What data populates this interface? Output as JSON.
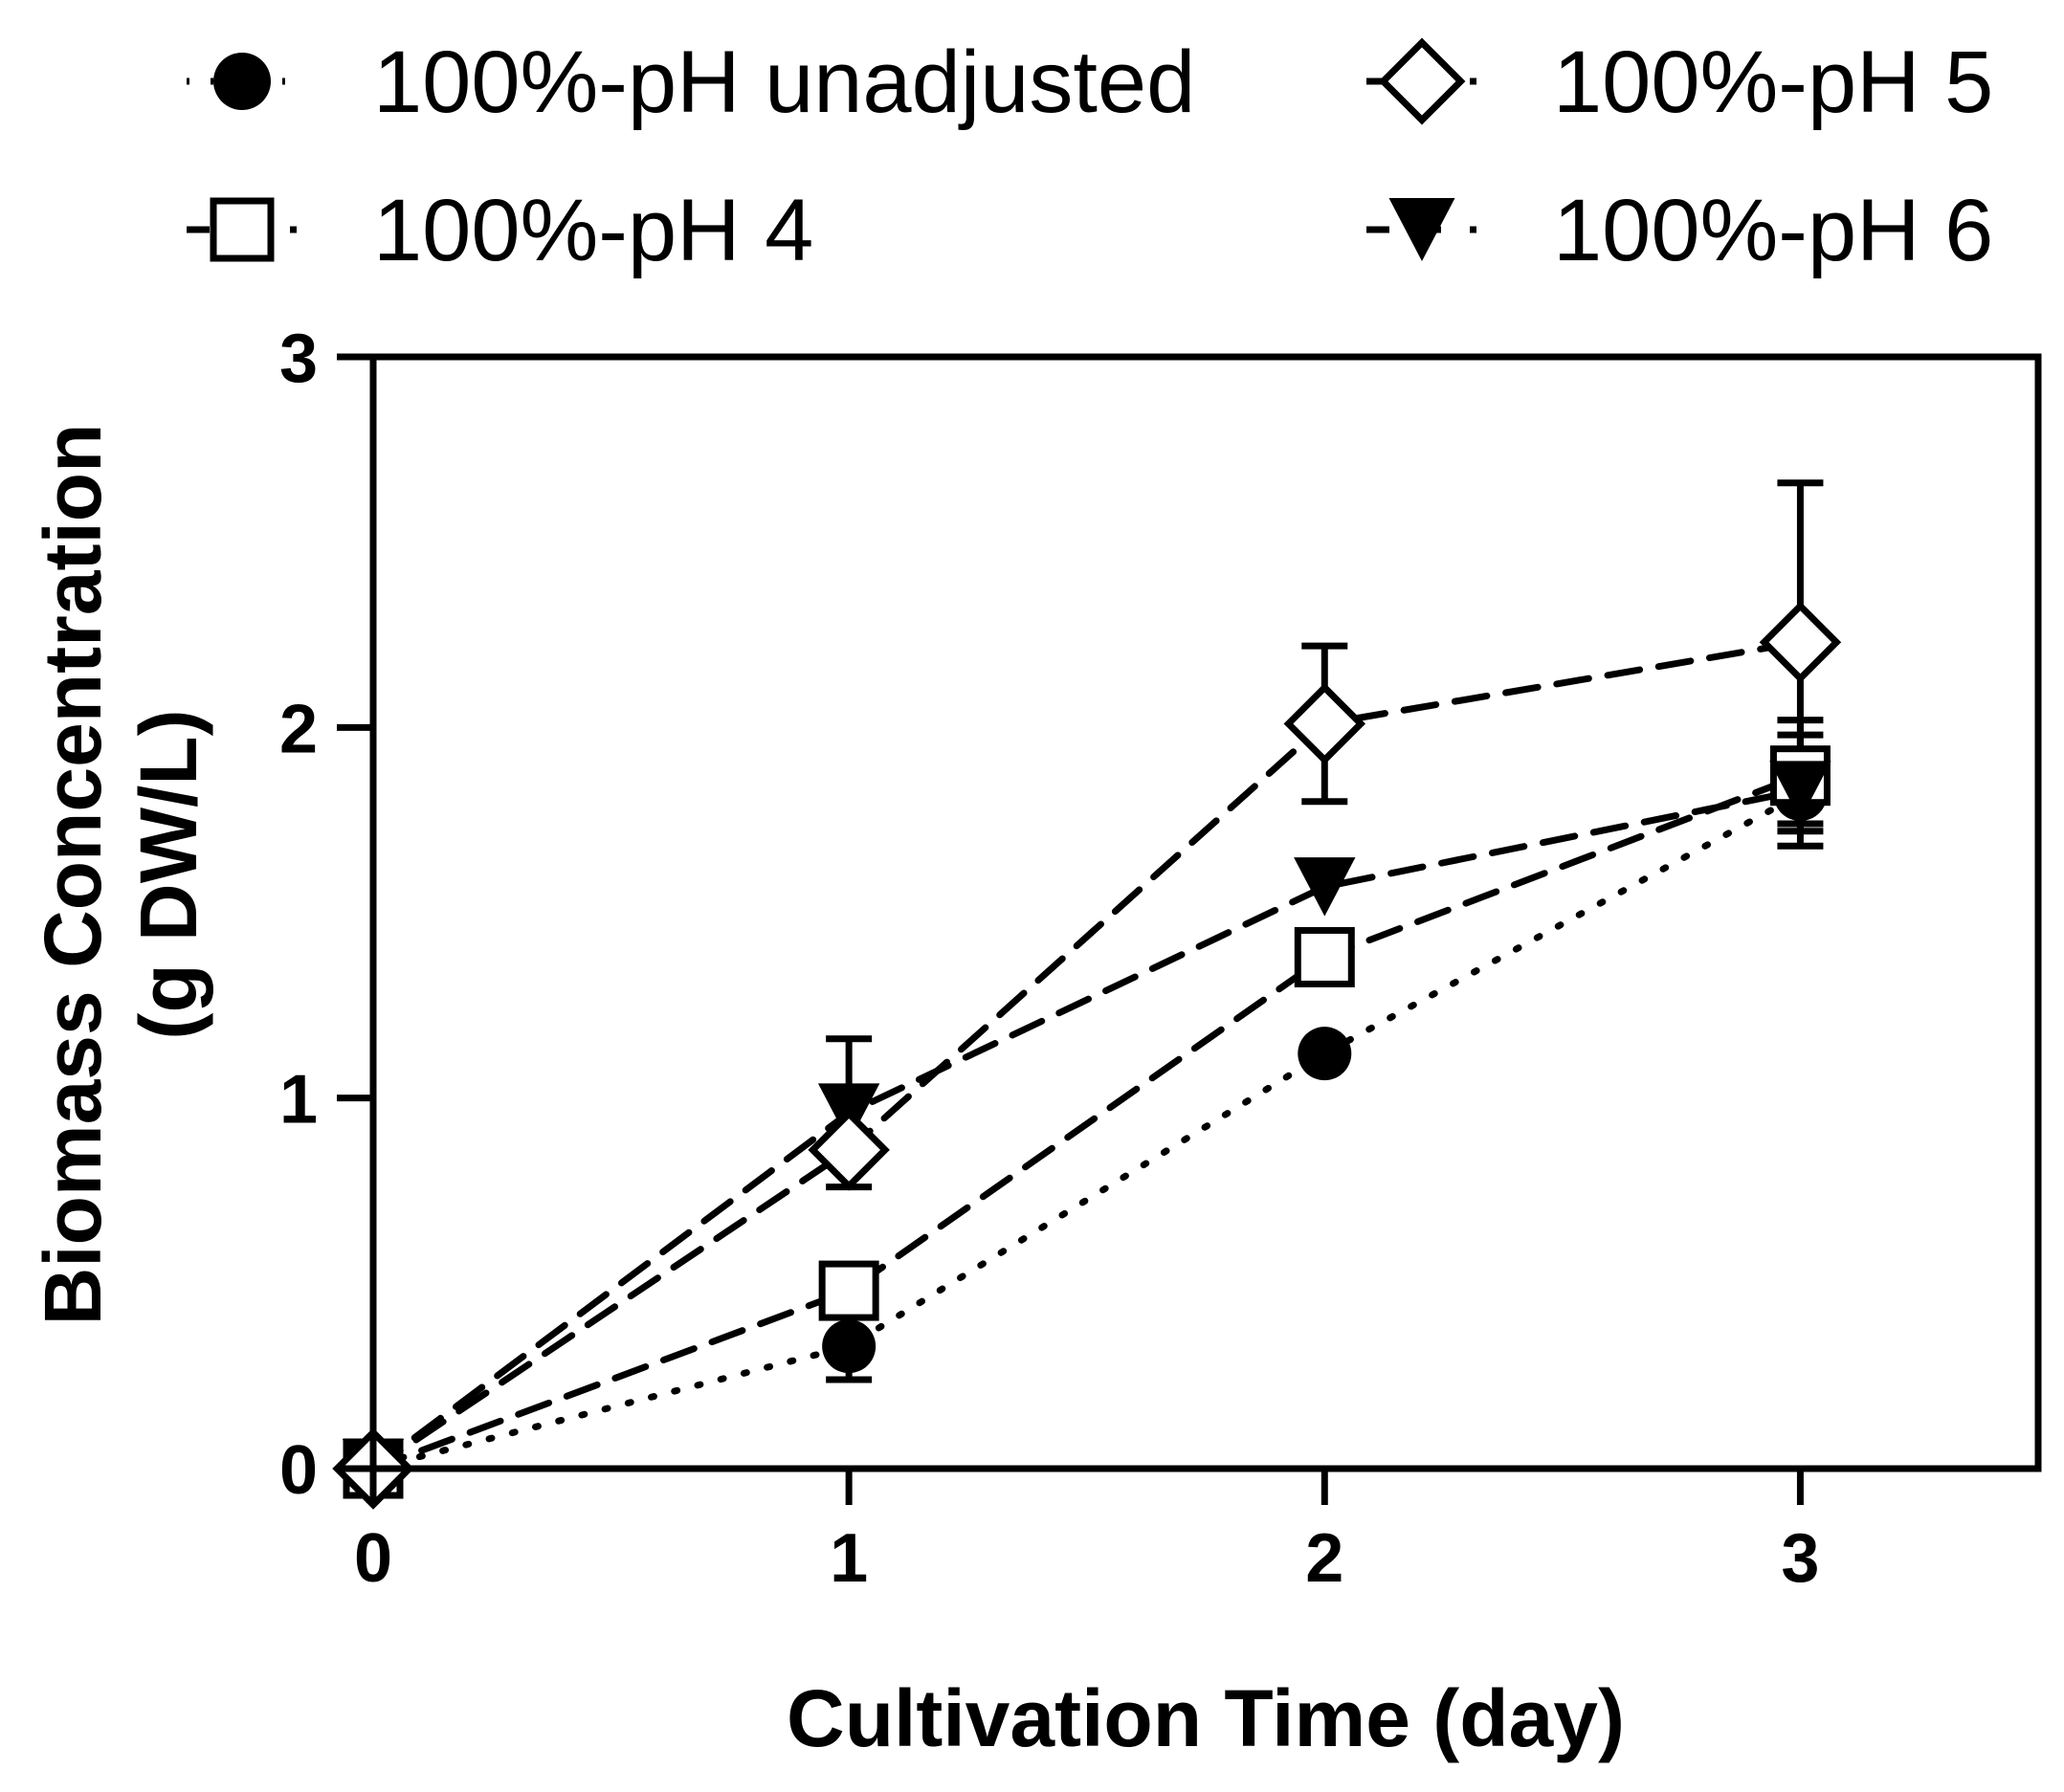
{
  "chart_data": {
    "type": "line",
    "title": "",
    "xlabel": "Cultivation Time (day)",
    "ylabel": [
      "Biomass Concentration",
      "(g DW/L)"
    ],
    "xlim": [
      0,
      3.5
    ],
    "ylim": [
      0,
      3
    ],
    "xticks": [
      0,
      1,
      2,
      3
    ],
    "yticks": [
      0,
      1,
      2,
      3
    ],
    "grid": false,
    "legend_position": "top",
    "x": [
      0,
      1,
      2,
      3
    ],
    "series": [
      {
        "name": "100%-pH unadjusted",
        "marker": "circle",
        "line": "dotted",
        "values": [
          0,
          0.33,
          1.12,
          1.82
        ],
        "errors": [
          0,
          0.09,
          0,
          0.08
        ]
      },
      {
        "name": "100%-pH 4",
        "marker": "square",
        "line": "dashed",
        "values": [
          0,
          0.48,
          1.38,
          1.87
        ],
        "errors": [
          0,
          0,
          0,
          0.15
        ]
      },
      {
        "name": "100%-pH 5",
        "marker": "diamond",
        "line": "dashed",
        "values": [
          0,
          0.86,
          2.01,
          2.23
        ],
        "errors": [
          0,
          0,
          0.21,
          0.43
        ]
      },
      {
        "name": "100%-pH 6",
        "marker": "triangle-down",
        "line": "dashed",
        "values": [
          0,
          0.96,
          1.57,
          1.83
        ],
        "errors": [
          0,
          0.2,
          0,
          0.15
        ]
      }
    ]
  }
}
